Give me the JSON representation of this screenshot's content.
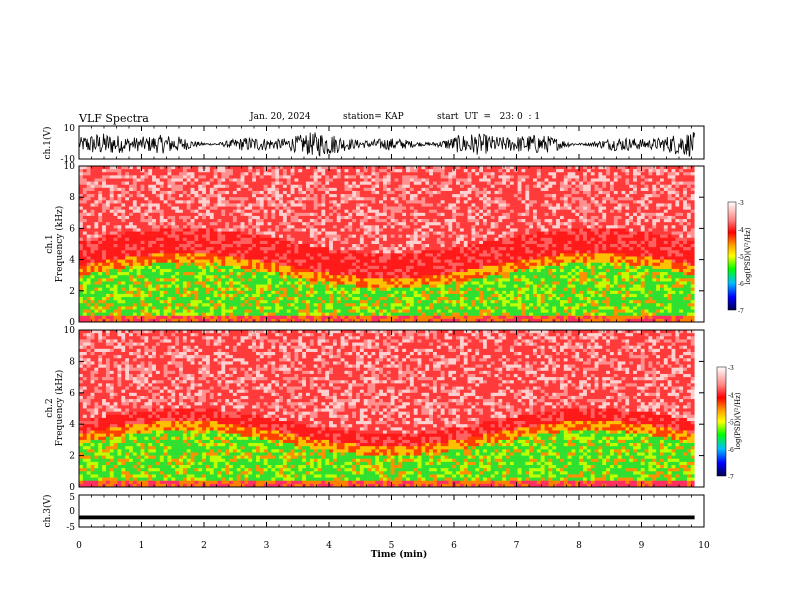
{
  "header": {
    "title": "VLF Spectra",
    "date": "Jan. 20, 2024",
    "station": "station= KAP",
    "start_ut": "start  UT  =   23: 0  : 1"
  },
  "colors": {
    "axis": "#000000",
    "colormap": [
      "#ffffff",
      "#ff0000",
      "#ffff00",
      "#00ff00",
      "#00ffff",
      "#0000ff",
      "#000040"
    ]
  },
  "chart_data": [
    {
      "type": "line",
      "panel": "ch1-waveform",
      "ylabel": "ch.1(V)",
      "ylim": [
        -10,
        10
      ],
      "yticks": [
        "10",
        "-10"
      ],
      "xlim": [
        0,
        10
      ],
      "description_of_data": "dense noisy waveform spanning roughly -7 to +8 V, 0–9.85 min"
    },
    {
      "type": "heatmap",
      "panel": "ch1-spectrogram",
      "ylabel": "ch.1\nFrequency (kHz)",
      "ylim": [
        0,
        10
      ],
      "yticks": [
        "0",
        "2",
        "4",
        "6",
        "8",
        "10"
      ],
      "xlim": [
        0,
        10
      ],
      "colorbar": {
        "label": "log(PSD)(V²/Hz)",
        "range": [
          -7,
          -3
        ],
        "ticks": [
          "-3",
          "-4",
          "-5",
          "-6",
          "-7"
        ]
      }
    },
    {
      "type": "heatmap",
      "panel": "ch2-spectrogram",
      "ylabel": "ch.2\nFrequency (kHz)",
      "ylim": [
        0,
        10
      ],
      "yticks": [
        "0",
        "2",
        "4",
        "6",
        "8",
        "10"
      ],
      "xlim": [
        0,
        10
      ],
      "colorbar": {
        "label": "log(PSD)(V²/Hz)",
        "range": [
          -7,
          -3
        ],
        "ticks": [
          "-3",
          "-4",
          "-5",
          "-6",
          "-7"
        ]
      }
    },
    {
      "type": "line",
      "panel": "ch3-waveform",
      "ylabel": "ch.3(V)",
      "ylim": [
        -5,
        5
      ],
      "yticks": [
        "5",
        "0",
        "-5"
      ],
      "xlim": [
        0,
        10
      ],
      "description_of_data": "near-constant dense band around -2 V, 0–9.85 min"
    }
  ],
  "xaxis": {
    "label": "Time (min)",
    "ticks": [
      "0",
      "1",
      "2",
      "3",
      "4",
      "5",
      "6",
      "7",
      "8",
      "9",
      "10"
    ]
  }
}
